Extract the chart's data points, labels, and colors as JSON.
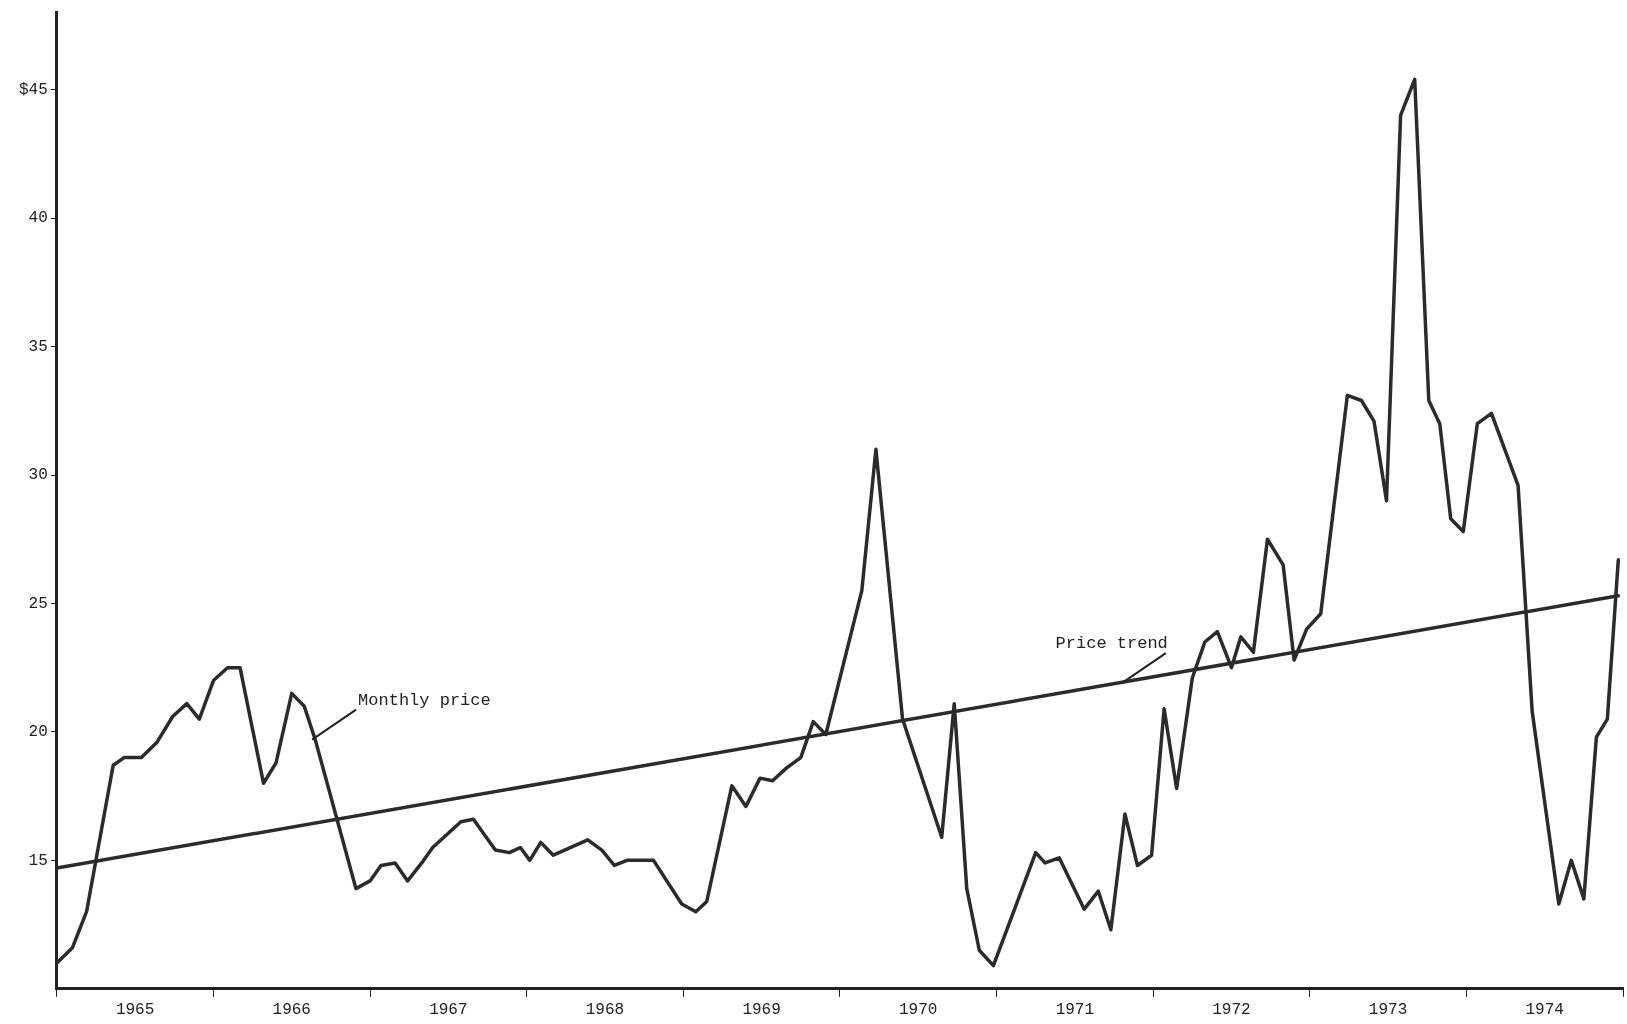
{
  "chart_data": {
    "type": "line",
    "xlim": [
      1965,
      1975
    ],
    "ylim": [
      10,
      48
    ],
    "xticks": [
      {
        "value": 1965,
        "label": null
      },
      {
        "value": 1965.5,
        "label": "1965"
      },
      {
        "value": 1966,
        "label": null
      },
      {
        "value": 1966.5,
        "label": "1966"
      },
      {
        "value": 1967,
        "label": null
      },
      {
        "value": 1967.5,
        "label": "1967"
      },
      {
        "value": 1968,
        "label": null
      },
      {
        "value": 1968.5,
        "label": "1968"
      },
      {
        "value": 1969,
        "label": null
      },
      {
        "value": 1969.5,
        "label": "1969"
      },
      {
        "value": 1970,
        "label": null
      },
      {
        "value": 1970.5,
        "label": "1970"
      },
      {
        "value": 1971,
        "label": null
      },
      {
        "value": 1971.5,
        "label": "1971"
      },
      {
        "value": 1972,
        "label": null
      },
      {
        "value": 1972.5,
        "label": "1972"
      },
      {
        "value": 1973,
        "label": null
      },
      {
        "value": 1973.5,
        "label": "1973"
      },
      {
        "value": 1974,
        "label": null
      },
      {
        "value": 1974.5,
        "label": "1974"
      },
      {
        "value": 1975,
        "label": null
      }
    ],
    "yticks": [
      15,
      20,
      25,
      30,
      35,
      40,
      {
        "value": 45,
        "label": "$45"
      }
    ],
    "grid": false,
    "legend": false,
    "marker": "none",
    "line_style": "solid",
    "series": [
      {
        "color": "#2b2b2b",
        "x": [
          1965.0,
          1965.1,
          1965.19,
          1965.36,
          1965.43,
          1965.54,
          1965.64,
          1965.74,
          1965.83,
          1965.91,
          1966.0,
          1966.09,
          1966.17,
          1966.32,
          1966.4,
          1966.5,
          1966.58,
          1966.65,
          1966.91,
          1967.0,
          1967.07,
          1967.16,
          1967.24,
          1967.33,
          1967.4,
          1967.58,
          1967.66,
          1967.8,
          1967.89,
          1967.96,
          1968.02,
          1968.09,
          1968.17,
          1968.39,
          1968.48,
          1968.56,
          1968.64,
          1968.81,
          1968.99,
          1969.08,
          1969.15,
          1969.31,
          1969.4,
          1969.49,
          1969.57,
          1969.66,
          1969.75,
          1969.83,
          1969.91,
          1970.14,
          1970.23,
          1970.4,
          1970.65,
          1970.73,
          1970.81,
          1970.89,
          1970.98,
          1971.25,
          1971.31,
          1971.4,
          1971.56,
          1971.65,
          1971.73,
          1971.82,
          1971.9,
          1971.99,
          1972.07,
          1972.15,
          1972.25,
          1972.33,
          1972.41,
          1972.5,
          1972.56,
          1972.64,
          1972.73,
          1972.83,
          1972.9,
          1972.98,
          1973.07,
          1973.24,
          1973.33,
          1973.41,
          1973.49,
          1973.58,
          1973.67,
          1973.76,
          1973.83,
          1973.9,
          1973.98,
          1974.07,
          1974.16,
          1974.33,
          1974.42,
          1974.59,
          1974.67,
          1974.75,
          1974.83,
          1974.9,
          1974.97
        ],
        "values": [
          11.0,
          11.6,
          13.0,
          18.7,
          19.0,
          19.0,
          19.6,
          20.6,
          21.1,
          20.5,
          22.0,
          22.5,
          22.5,
          18.0,
          18.8,
          21.5,
          21.0,
          19.7,
          13.9,
          14.2,
          14.8,
          14.9,
          14.2,
          14.9,
          15.5,
          16.5,
          16.6,
          15.4,
          15.3,
          15.5,
          15.0,
          15.7,
          15.2,
          15.8,
          15.4,
          14.8,
          15.0,
          15.0,
          13.3,
          13.0,
          13.4,
          17.9,
          17.1,
          18.2,
          18.1,
          18.6,
          19.0,
          20.4,
          19.9,
          25.5,
          31.0,
          20.5,
          15.9,
          21.1,
          13.9,
          11.5,
          10.9,
          15.3,
          14.9,
          15.1,
          13.1,
          13.8,
          12.3,
          16.8,
          14.8,
          15.2,
          20.9,
          17.8,
          22.1,
          23.5,
          23.9,
          22.5,
          23.7,
          23.1,
          27.5,
          26.5,
          22.8,
          24.0,
          24.6,
          33.1,
          32.9,
          32.1,
          29.0,
          44.0,
          45.4,
          32.9,
          32.0,
          28.3,
          27.8,
          32.0,
          32.4,
          29.6,
          20.8,
          13.3,
          15.0,
          13.5,
          19.8,
          20.5,
          26.7
        ]
      },
      {
        "color": "#2b2b2b",
        "x": [
          1965.0,
          1974.97
        ],
        "values": [
          14.7,
          25.3
        ]
      }
    ],
    "annotations": [
      {
        "text": "Monthly price",
        "x": 1966.63,
        "y": 19.7
      },
      {
        "text": "Price trend",
        "x": 1971.8,
        "y": 21.9
      }
    ]
  }
}
